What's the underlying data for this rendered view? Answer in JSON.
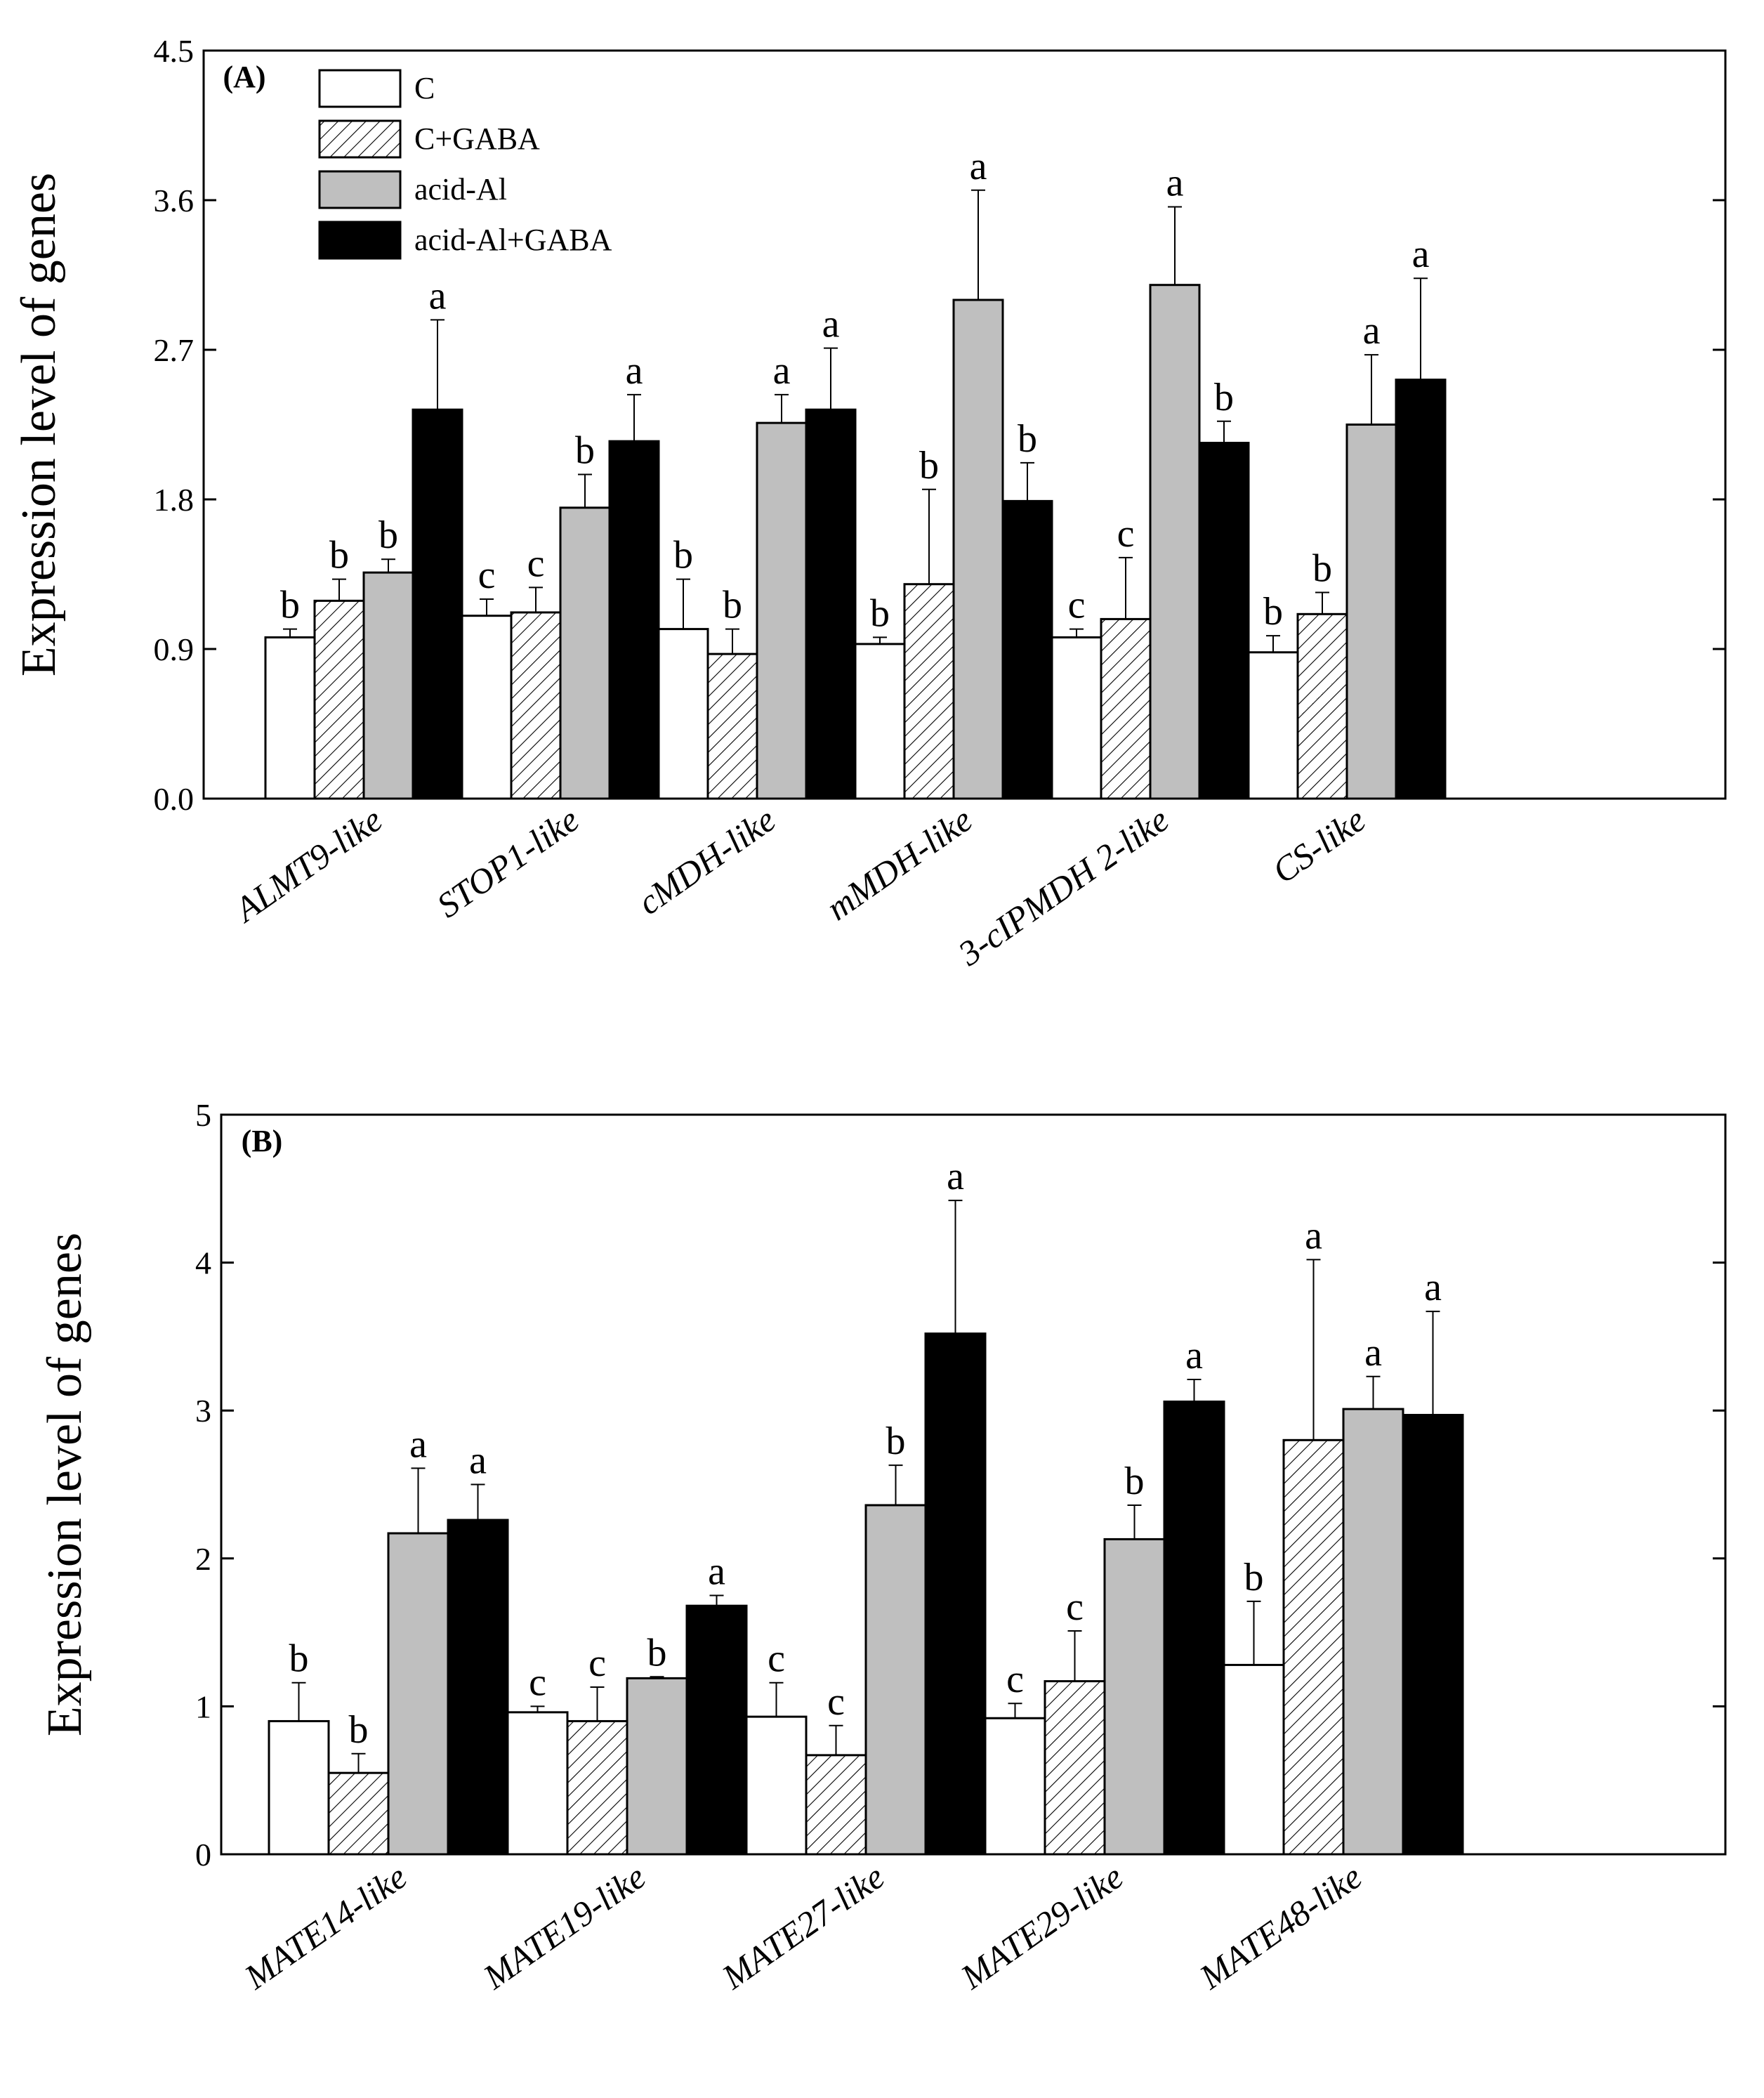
{
  "colors": {
    "C": "#ffffff",
    "C+GABA": "hatch",
    "acid-Al": "#bfbfbf",
    "acid-Al+GABA": "#000000"
  },
  "chart_data": [
    {
      "id": "A",
      "type": "bar",
      "panel_label": "(A)",
      "ylabel": "Expression level of genes",
      "xlabel": "",
      "ylim": [
        0,
        4.5
      ],
      "yticks": [
        "0.0",
        "0.9",
        "1.8",
        "2.7",
        "3.6",
        "4.5"
      ],
      "legend_position": "top-left",
      "categories": [
        "ALMT9-like",
        "STOP1-like",
        "cMDH-like",
        "mMDH-like",
        "3-cIPMDH 2-like",
        "CS-like"
      ],
      "series": [
        {
          "name": "C",
          "values": [
            0.97,
            1.1,
            1.02,
            0.93,
            0.97,
            0.88
          ],
          "errors": [
            0.05,
            0.1,
            0.3,
            0.04,
            0.05,
            0.1
          ],
          "letters": [
            "b",
            "c",
            "b",
            "b",
            "c",
            "b"
          ]
        },
        {
          "name": "C+GABA",
          "values": [
            1.19,
            1.12,
            0.87,
            1.29,
            1.08,
            1.11
          ],
          "errors": [
            0.13,
            0.15,
            0.15,
            0.57,
            0.37,
            0.13
          ],
          "letters": [
            "b",
            "c",
            "b",
            "b",
            "c",
            "b"
          ]
        },
        {
          "name": "acid-Al",
          "values": [
            1.36,
            1.75,
            2.26,
            3.0,
            3.09,
            2.25
          ],
          "errors": [
            0.08,
            0.2,
            0.17,
            0.66,
            0.47,
            0.42
          ],
          "letters": [
            "b",
            "b",
            "a",
            "a",
            "a",
            "a"
          ]
        },
        {
          "name": "acid-Al+GABA",
          "values": [
            2.34,
            2.15,
            2.34,
            1.79,
            2.14,
            2.52
          ],
          "errors": [
            0.54,
            0.28,
            0.37,
            0.23,
            0.13,
            0.61
          ],
          "letters": [
            "a",
            "a",
            "a",
            "b",
            "b",
            "a"
          ]
        }
      ]
    },
    {
      "id": "B",
      "type": "bar",
      "panel_label": "(B)",
      "ylabel": "Expression level of genes",
      "xlabel": "",
      "ylim": [
        0,
        5
      ],
      "yticks": [
        "0",
        "1",
        "2",
        "3",
        "4",
        "5"
      ],
      "categories": [
        "MATE14-like",
        "MATE19-like",
        "MATE27-like",
        "MATE29-like",
        "MATE48-like"
      ],
      "series": [
        {
          "name": "C",
          "values": [
            0.9,
            0.96,
            0.93,
            0.92,
            1.28
          ],
          "errors": [
            0.26,
            0.04,
            0.23,
            0.1,
            0.43
          ],
          "letters": [
            "b",
            "c",
            "c",
            "c",
            "b"
          ]
        },
        {
          "name": "C+GABA",
          "values": [
            0.55,
            0.9,
            0.67,
            1.17,
            2.8
          ],
          "errors": [
            0.13,
            0.23,
            0.2,
            0.34,
            1.22
          ],
          "letters": [
            "b",
            "c",
            "c",
            "c",
            "a"
          ]
        },
        {
          "name": "acid-Al",
          "values": [
            2.17,
            1.19,
            2.36,
            2.13,
            3.01
          ],
          "errors": [
            0.44,
            0.01,
            0.27,
            0.23,
            0.22
          ],
          "letters": [
            "a",
            "b",
            "b",
            "b",
            "a"
          ]
        },
        {
          "name": "acid-Al+GABA",
          "values": [
            2.26,
            1.68,
            3.52,
            3.06,
            2.97
          ],
          "errors": [
            0.24,
            0.07,
            0.9,
            0.15,
            0.7
          ],
          "letters": [
            "a",
            "a",
            "a",
            "a",
            "a"
          ]
        }
      ]
    }
  ]
}
